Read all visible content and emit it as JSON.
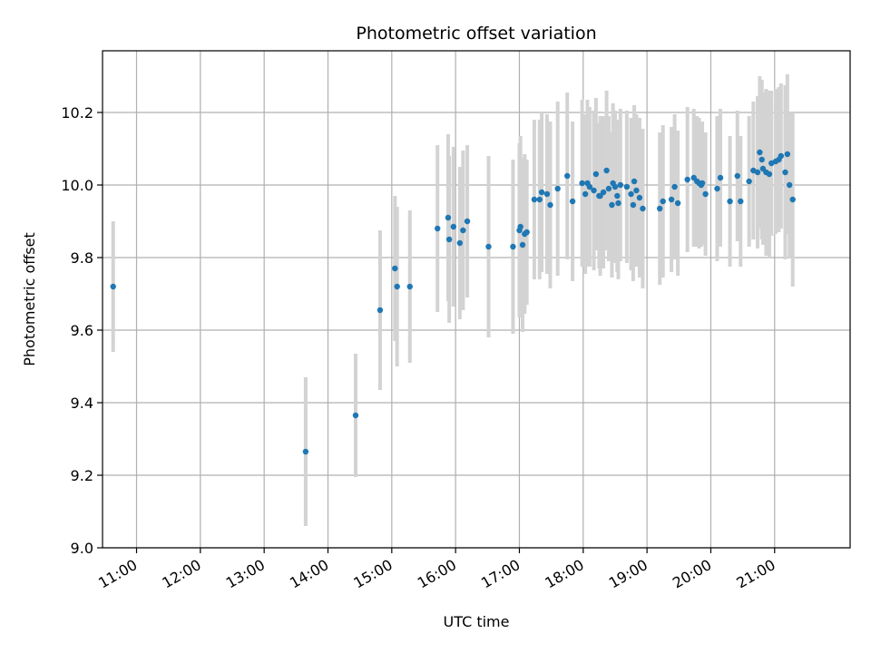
{
  "chart_data": {
    "type": "scatter",
    "title": "Photometric offset variation",
    "xlabel": "UTC time",
    "ylabel": "Photometric offset",
    "x_tick_labels": [
      "11:00",
      "12:00",
      "13:00",
      "14:00",
      "15:00",
      "16:00",
      "17:00",
      "18:00",
      "19:00",
      "20:00",
      "21:00"
    ],
    "y_tick_labels": [
      "9.0",
      "9.2",
      "9.4",
      "9.6",
      "9.8",
      "10.0",
      "10.2"
    ],
    "xlim": [
      "10:28",
      "22:11"
    ],
    "ylim": [
      9.0,
      10.37
    ],
    "grid": true,
    "colors": {
      "point": "#1f77b4",
      "errorbar": "#d3d3d3",
      "grid": "#b0b0b0"
    },
    "series": [
      {
        "x": [
          "10:38",
          "13:39",
          "14:26",
          "14:49",
          "15:03",
          "15:05",
          "15:17",
          "15:43",
          "15:53",
          "15:54",
          "15:58",
          "16:04",
          "16:07",
          "16:11",
          "16:31",
          "16:54",
          "17:00",
          "17:01",
          "17:03",
          "17:05",
          "17:07",
          "17:14",
          "17:19",
          "17:21",
          "17:26",
          "17:29",
          "17:36",
          "17:45",
          "17:50",
          "17:59",
          "18:02",
          "18:04",
          "18:06",
          "18:10",
          "18:12",
          "18:15",
          "18:16",
          "18:19",
          "18:22",
          "18:24",
          "18:27",
          "18:28",
          "18:30",
          "18:32",
          "18:33",
          "18:35",
          "18:41",
          "18:45",
          "18:47",
          "18:48",
          "18:50",
          "18:53",
          "18:56",
          "19:12",
          "19:15",
          "19:23",
          "19:26",
          "19:29",
          "19:38",
          "19:44",
          "19:47",
          "19:49",
          "19:51",
          "19:52",
          "19:55",
          "20:06",
          "20:09",
          "20:18",
          "20:25",
          "20:28",
          "20:36",
          "20:40",
          "20:44",
          "20:46",
          "20:48",
          "20:49",
          "20:52",
          "20:55",
          "20:57",
          "21:01",
          "21:04",
          "21:06",
          "21:10",
          "21:12",
          "21:14",
          "21:17"
        ],
        "y": [
          9.72,
          9.265,
          9.365,
          9.655,
          9.77,
          9.72,
          9.72,
          9.88,
          9.91,
          9.85,
          9.885,
          9.84,
          9.875,
          9.9,
          9.83,
          9.83,
          9.875,
          9.885,
          9.835,
          9.865,
          9.87,
          9.96,
          9.96,
          9.98,
          9.975,
          9.945,
          9.99,
          10.025,
          9.955,
          10.005,
          9.975,
          10.005,
          9.995,
          9.985,
          10.03,
          9.97,
          9.97,
          9.98,
          10.04,
          9.99,
          9.945,
          10.005,
          9.995,
          9.97,
          9.95,
          10.0,
          9.995,
          9.975,
          9.945,
          10.01,
          9.985,
          9.965,
          9.935,
          9.935,
          9.955,
          9.96,
          9.995,
          9.95,
          10.015,
          10.02,
          10.01,
          10.005,
          10.0,
          10.005,
          9.975,
          9.99,
          10.02,
          9.955,
          10.025,
          9.955,
          10.01,
          10.04,
          10.035,
          10.09,
          10.07,
          10.045,
          10.035,
          10.03,
          10.06,
          10.065,
          10.07,
          10.08,
          10.035,
          10.085,
          10.0,
          9.96
        ],
        "err": [
          0.18,
          0.205,
          0.17,
          0.22,
          0.2,
          0.22,
          0.21,
          0.23,
          0.23,
          0.23,
          0.22,
          0.21,
          0.22,
          0.21,
          0.25,
          0.24,
          0.24,
          0.25,
          0.24,
          0.22,
          0.2,
          0.22,
          0.22,
          0.22,
          0.22,
          0.23,
          0.24,
          0.23,
          0.22,
          0.23,
          0.22,
          0.23,
          0.22,
          0.22,
          0.21,
          0.2,
          0.22,
          0.21,
          0.22,
          0.2,
          0.2,
          0.22,
          0.21,
          0.21,
          0.21,
          0.21,
          0.21,
          0.21,
          0.21,
          0.21,
          0.21,
          0.22,
          0.22,
          0.21,
          0.21,
          0.2,
          0.2,
          0.2,
          0.2,
          0.19,
          0.18,
          0.18,
          0.17,
          0.17,
          0.17,
          0.2,
          0.19,
          0.18,
          0.18,
          0.18,
          0.18,
          0.19,
          0.21,
          0.21,
          0.22,
          0.21,
          0.23,
          0.23,
          0.2,
          0.2,
          0.2,
          0.2,
          0.24,
          0.22,
          0.2,
          0.24
        ]
      }
    ]
  }
}
